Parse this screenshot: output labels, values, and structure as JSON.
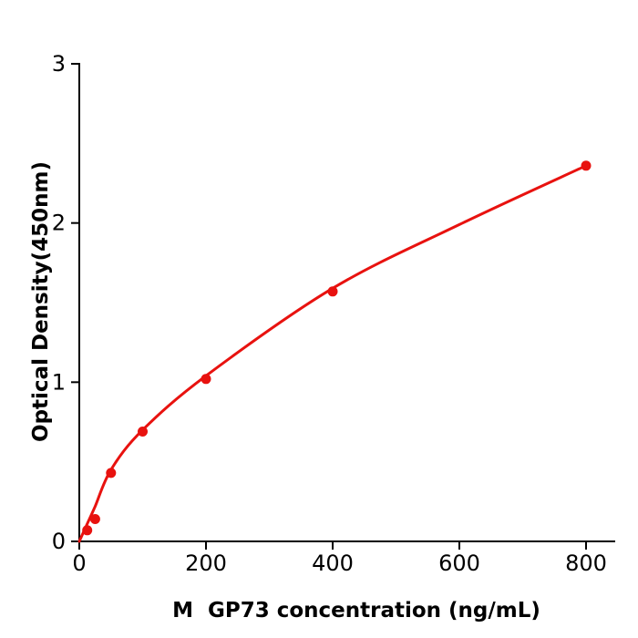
{
  "chart_data": {
    "type": "scatter",
    "title": "",
    "xlabel": "M  GP73 concentration (ng/mL)",
    "ylabel": "Optical Density(450nm)",
    "x_ticks": [
      0,
      200,
      400,
      600,
      800
    ],
    "y_ticks": [
      0,
      1,
      2,
      3
    ],
    "xlim": [
      0,
      846
    ],
    "ylim": [
      0,
      3
    ],
    "grid": false,
    "legend": "none",
    "colors": {
      "axis": "#000000",
      "series": "#e8120f",
      "background": "#ffffff"
    },
    "series": [
      {
        "marker": "circle",
        "color": "#e8120f",
        "points": [
          {
            "x": 12.5,
            "y": 0.07
          },
          {
            "x": 25,
            "y": 0.14
          },
          {
            "x": 50,
            "y": 0.43
          },
          {
            "x": 100,
            "y": 0.69
          },
          {
            "x": 200,
            "y": 1.02
          },
          {
            "x": 400,
            "y": 1.57
          },
          {
            "x": 800,
            "y": 2.36
          }
        ],
        "curve_points": [
          {
            "x": 0,
            "y": 0
          },
          {
            "x": 12.5,
            "y": 0.11
          },
          {
            "x": 25,
            "y": 0.22
          },
          {
            "x": 50,
            "y": 0.45
          },
          {
            "x": 100,
            "y": 0.7
          },
          {
            "x": 200,
            "y": 1.04
          },
          {
            "x": 400,
            "y": 1.59
          },
          {
            "x": 600,
            "y": 1.99
          },
          {
            "x": 800,
            "y": 2.36
          }
        ]
      }
    ]
  }
}
